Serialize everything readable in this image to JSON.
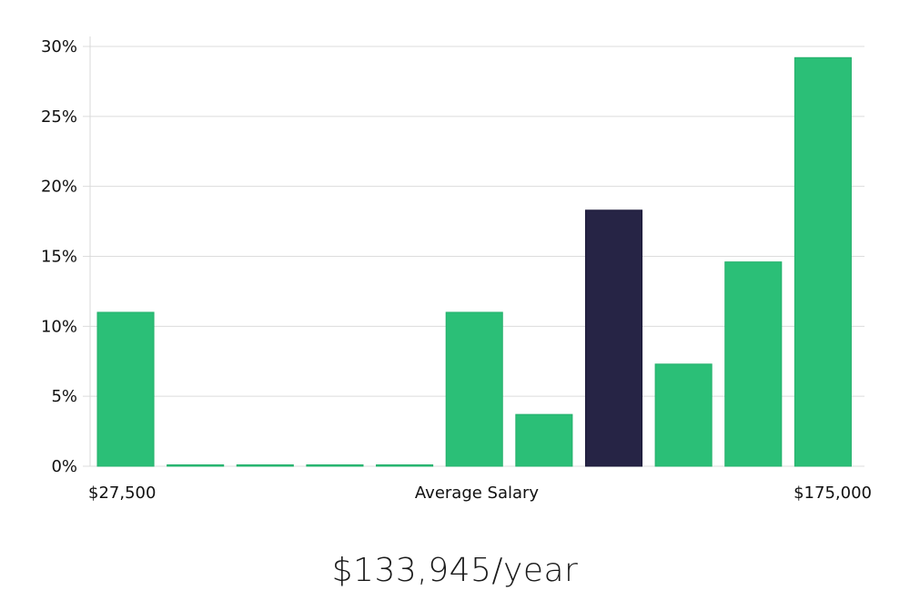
{
  "chart_data": {
    "type": "bar",
    "x_tick_left": "$27,500",
    "x_tick_right": "$175,000",
    "xlabel": "Average Salary",
    "ylabel": "",
    "ylim": [
      0,
      30
    ],
    "y_ticks": [
      "0%",
      "5%",
      "10%",
      "15%",
      "20%",
      "25%",
      "30%"
    ],
    "y_tick_values": [
      0,
      5,
      10,
      15,
      20,
      25,
      30
    ],
    "values": [
      11.0,
      0.1,
      0.1,
      0.1,
      0.1,
      11.0,
      3.7,
      18.3,
      7.3,
      14.6,
      29.2
    ],
    "highlight_index": 7,
    "grid": true
  },
  "colors": {
    "bar": "#2bbf77",
    "bar_highlight": "#262445",
    "grid": "#dcdcdc",
    "axis": "#d9d9d9"
  },
  "salary_label": "$133,945/year"
}
